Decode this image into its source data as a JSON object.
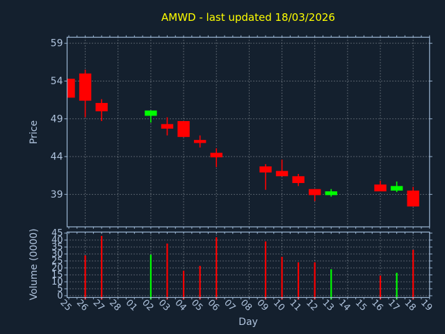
{
  "figure": {
    "symbol": "AMWD",
    "last_updated": "18/03/2026",
    "background_color": "#14202e",
    "title_color": "#ffff00",
    "axis_color": "#9db8d6",
    "text_color": "#b0c4de",
    "grid_color": "#c9ced3",
    "up_color": "#00ff00",
    "down_color": "#ff0000"
  },
  "chart_data": [
    {
      "type": "candlestick",
      "title": "AMWD - last updated 18/03/2026",
      "xlabel": "Day",
      "ylabel": "Price",
      "grid": true,
      "legend": false,
      "ylim": [
        34.7,
        59.8
      ],
      "yticks": [
        59,
        54,
        49,
        44,
        39
      ],
      "categories": [
        "25",
        "26",
        "27",
        "28",
        "01",
        "02",
        "03",
        "04",
        "05",
        "06",
        "07",
        "08",
        "09",
        "10",
        "11",
        "12",
        "13",
        "14",
        "15",
        "16",
        "17",
        "18",
        "19"
      ],
      "ohlc": [
        {
          "day": "25",
          "open": 54.3,
          "high": 54.3,
          "low": 51.8,
          "close": 51.8
        },
        {
          "day": "26",
          "open": 55.0,
          "high": 55.5,
          "low": 49.2,
          "close": 51.4
        },
        {
          "day": "27",
          "open": 51.1,
          "high": 51.6,
          "low": 48.7,
          "close": 50.0
        },
        {
          "day": "28",
          "open": null,
          "high": null,
          "low": null,
          "close": null
        },
        {
          "day": "01",
          "open": null,
          "high": null,
          "low": null,
          "close": null
        },
        {
          "day": "02",
          "open": 49.4,
          "high": 50.1,
          "low": 48.5,
          "close": 50.1
        },
        {
          "day": "03",
          "open": 48.3,
          "high": 49.2,
          "low": 46.8,
          "close": 47.7
        },
        {
          "day": "04",
          "open": 48.7,
          "high": 48.7,
          "low": 46.6,
          "close": 46.6
        },
        {
          "day": "05",
          "open": 46.2,
          "high": 46.8,
          "low": 45.2,
          "close": 45.8
        },
        {
          "day": "06",
          "open": 44.5,
          "high": 45.1,
          "low": 42.6,
          "close": 43.9
        },
        {
          "day": "07",
          "open": null,
          "high": null,
          "low": null,
          "close": null
        },
        {
          "day": "08",
          "open": null,
          "high": null,
          "low": null,
          "close": null
        },
        {
          "day": "09",
          "open": 42.7,
          "high": 43.0,
          "low": 39.6,
          "close": 41.9
        },
        {
          "day": "10",
          "open": 42.1,
          "high": 43.6,
          "low": 41.4,
          "close": 41.4
        },
        {
          "day": "11",
          "open": 41.4,
          "high": 41.7,
          "low": 40.1,
          "close": 40.5
        },
        {
          "day": "12",
          "open": 39.7,
          "high": 39.7,
          "low": 38.1,
          "close": 38.9
        },
        {
          "day": "13",
          "open": 38.9,
          "high": 39.7,
          "low": 38.7,
          "close": 39.4
        },
        {
          "day": "14",
          "open": null,
          "high": null,
          "low": null,
          "close": null
        },
        {
          "day": "15",
          "open": null,
          "high": null,
          "low": null,
          "close": null
        },
        {
          "day": "16",
          "open": 40.3,
          "high": 40.8,
          "low": 39.4,
          "close": 39.4
        },
        {
          "day": "17",
          "open": 39.5,
          "high": 40.7,
          "low": 39.3,
          "close": 40.1
        },
        {
          "day": "18",
          "open": 39.5,
          "high": 40.0,
          "low": 37.4,
          "close": 37.4
        },
        {
          "day": "19",
          "open": null,
          "high": null,
          "low": null,
          "close": null
        }
      ]
    },
    {
      "type": "bar",
      "title": "",
      "xlabel": "Day",
      "ylabel": "Volume (0000)",
      "grid": true,
      "legend": false,
      "ylim": [
        -1.25,
        45.75
      ],
      "yticks": [
        45,
        40,
        35,
        30,
        25,
        20,
        15,
        10,
        5,
        0
      ],
      "categories": [
        "25",
        "26",
        "27",
        "28",
        "01",
        "02",
        "03",
        "04",
        "05",
        "06",
        "07",
        "08",
        "09",
        "10",
        "11",
        "12",
        "13",
        "14",
        "15",
        "16",
        "17",
        "18",
        "19"
      ],
      "values": [
        null,
        29,
        43,
        null,
        null,
        29.5,
        37.5,
        18,
        21.5,
        42,
        null,
        null,
        39,
        28,
        24,
        24,
        19,
        null,
        null,
        14.5,
        16.5,
        33,
        null
      ]
    }
  ]
}
